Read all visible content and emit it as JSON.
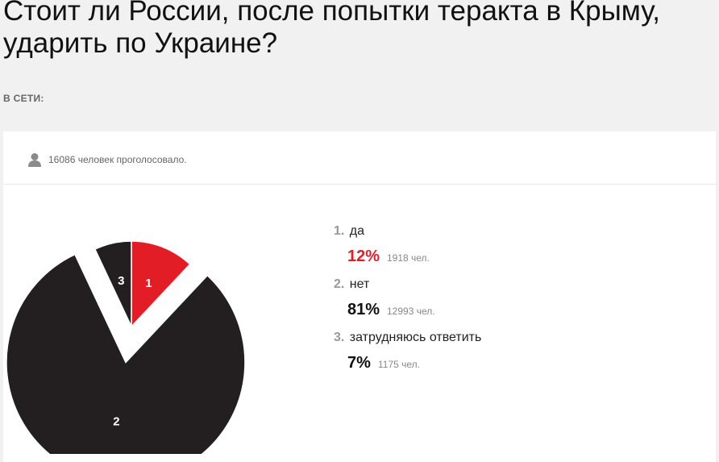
{
  "poll": {
    "question": "Стоит ли России, после попытки теракта в Крыму, ударить по Украине?",
    "question_line1": "Стоит ли России, после попытки теракта в Крыму,",
    "question_line2": "ударить по Украине?",
    "online_label": "В СЕТИ:",
    "voted_text": "16086 человек проголосовало.",
    "answers": [
      {
        "index": "1.",
        "label": "да",
        "percent": "12%",
        "count": "1918 чел.",
        "value": 12,
        "color": "#e21d25"
      },
      {
        "index": "2.",
        "label": "нет",
        "percent": "81%",
        "count": "12993 чел.",
        "value": 81,
        "color": "#231f20"
      },
      {
        "index": "3.",
        "label": "затрудняюсь ответить",
        "percent": "7%",
        "count": "1175 чел.",
        "value": 7,
        "color": "#231f20"
      }
    ]
  },
  "chart_data": {
    "type": "pie",
    "categories": [
      "1",
      "2",
      "3"
    ],
    "values": [
      12,
      81,
      7
    ],
    "colors": [
      "#e21d25",
      "#231f20",
      "#231f20"
    ],
    "exploded_slice": "2"
  },
  "icons": {
    "voted": "user-icon"
  }
}
